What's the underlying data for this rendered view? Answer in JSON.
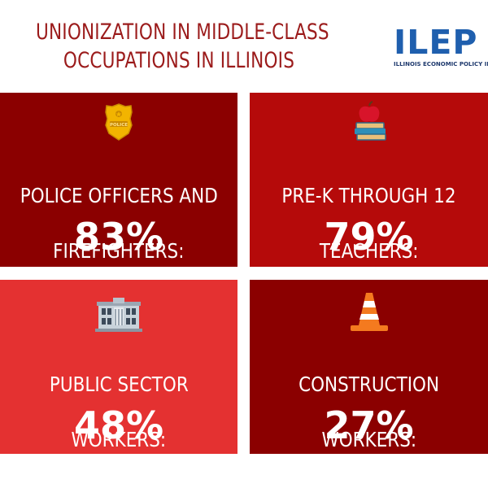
{
  "title": {
    "line1": "UNIONIZATION IN MIDDLE-CLASS",
    "line2": "OCCUPATIONS IN ILLINOIS"
  },
  "logo": {
    "mark": "ILEP",
    "subtitle": "ILLINOIS ECONOMIC POLICY INSTI"
  },
  "colors": {
    "title": "#9b1b1b",
    "dark_red": "#8b0000",
    "mid_red": "#b50a0a",
    "bright_red": "#e43131",
    "logo_blue": "#1f5fae"
  },
  "cards": [
    {
      "icon": "police-badge-icon",
      "badge_text": "POLICE",
      "label_line1": "POLICE OFFICERS AND",
      "label_line2": "FIREFIGHTERS:",
      "value": "83%",
      "share": 0.83
    },
    {
      "icon": "apple-books-icon",
      "label_line1": "PRE-K THROUGH 12",
      "label_line2": "TEACHERS:",
      "value": "79%",
      "share": 0.79
    },
    {
      "icon": "government-building-icon",
      "label_line1": "PUBLIC SECTOR",
      "label_line2": "WORKERS:",
      "value": "48%",
      "share": 0.48
    },
    {
      "icon": "traffic-cone-icon",
      "label_line1": "CONSTRUCTION",
      "label_line2": "WORKERS:",
      "value": "27%",
      "share": 0.27
    }
  ]
}
